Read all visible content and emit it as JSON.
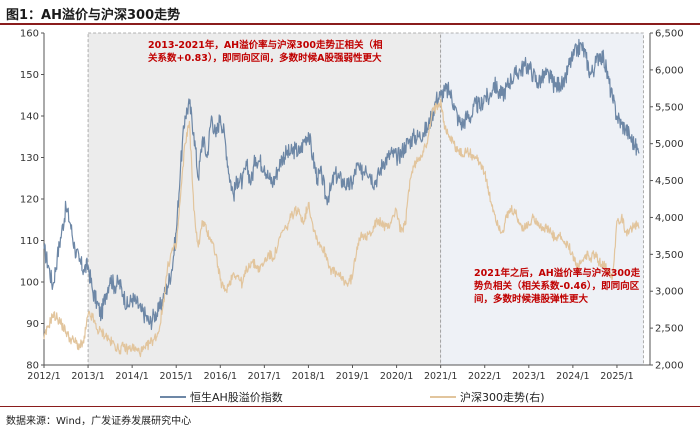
{
  "figure_title": "图1：AH溢价与沪深300走势",
  "source_note": "数据来源：Wind，广发证券发展研究中心",
  "colors": {
    "ah": "#6d87a6",
    "hs300": "#e2c59d",
    "annotation": "#c00000",
    "shade": "#ececec",
    "shade2": "#eef1f6"
  },
  "chart_data": {
    "type": "line",
    "title": "AH溢价与沪深300走势",
    "x_range": [
      2012.0,
      2025.75
    ],
    "x_ticks": [
      "2012/1",
      "2013/1",
      "2014/1",
      "2015/1",
      "2016/1",
      "2017/1",
      "2018/1",
      "2019/1",
      "2020/1",
      "2021/1",
      "2022/1",
      "2023/1",
      "2024/1",
      "2025/1"
    ],
    "y_left": {
      "range": [
        80,
        160
      ],
      "ticks": [
        80,
        90,
        100,
        110,
        120,
        130,
        140,
        150,
        160
      ]
    },
    "y_right": {
      "range": [
        2000,
        6500
      ],
      "ticks": [
        "2,000",
        "2,500",
        "3,000",
        "3,500",
        "4,000",
        "4,500",
        "5,000",
        "5,500",
        "6,000",
        "6,500"
      ]
    },
    "legend": [
      "恒生AH股溢价指数",
      "沪深300走势(右)"
    ],
    "shaded_periods": [
      {
        "start": 2013.0,
        "end": 2021.0,
        "label": "2013-2021年，AH溢价率与沪深300走势正相关（相关系数+0.83），即同向区间，多数时候A股强弱性更大"
      },
      {
        "start": 2021.0,
        "end": 2025.6,
        "label": "2021年之后，AH溢价率与沪深300走势负相关（相关系数-0.46），即同向区间，多数时候港股弹性更大"
      }
    ],
    "series": [
      {
        "name": "恒生AH股溢价指数",
        "axis": "left",
        "x": [
          2012.0,
          2012.1,
          2012.2,
          2012.3,
          2012.4,
          2012.5,
          2012.6,
          2012.7,
          2012.8,
          2012.9,
          2013.0,
          2013.1,
          2013.2,
          2013.3,
          2013.4,
          2013.5,
          2013.6,
          2013.7,
          2013.8,
          2013.9,
          2014.0,
          2014.1,
          2014.2,
          2014.3,
          2014.4,
          2014.5,
          2014.6,
          2014.7,
          2014.8,
          2014.9,
          2015.0,
          2015.1,
          2015.2,
          2015.3,
          2015.4,
          2015.5,
          2015.6,
          2015.7,
          2015.8,
          2015.9,
          2016.0,
          2016.1,
          2016.2,
          2016.3,
          2016.4,
          2016.5,
          2016.6,
          2016.7,
          2016.8,
          2016.9,
          2017.0,
          2017.1,
          2017.2,
          2017.3,
          2017.4,
          2017.5,
          2017.6,
          2017.7,
          2017.8,
          2017.9,
          2018.0,
          2018.1,
          2018.2,
          2018.3,
          2018.4,
          2018.5,
          2018.6,
          2018.7,
          2018.8,
          2018.9,
          2019.0,
          2019.1,
          2019.2,
          2019.3,
          2019.4,
          2019.5,
          2019.6,
          2019.7,
          2019.8,
          2019.9,
          2020.0,
          2020.1,
          2020.2,
          2020.3,
          2020.4,
          2020.5,
          2020.6,
          2020.7,
          2020.8,
          2020.9,
          2021.0,
          2021.1,
          2021.2,
          2021.3,
          2021.4,
          2021.5,
          2021.6,
          2021.7,
          2021.8,
          2021.9,
          2022.0,
          2022.1,
          2022.2,
          2022.3,
          2022.4,
          2022.5,
          2022.6,
          2022.7,
          2022.8,
          2022.9,
          2023.0,
          2023.1,
          2023.2,
          2023.3,
          2023.4,
          2023.5,
          2023.6,
          2023.7,
          2023.8,
          2023.9,
          2024.0,
          2024.1,
          2024.2,
          2024.3,
          2024.4,
          2024.5,
          2024.6,
          2024.7,
          2024.8,
          2024.9,
          2025.0,
          2025.1,
          2025.2,
          2025.3,
          2025.4,
          2025.5
        ],
        "values": [
          108,
          104,
          99,
          106,
          112,
          118,
          114,
          108,
          105,
          103,
          104,
          98,
          95,
          92,
          97,
          101,
          99,
          100,
          97,
          94,
          96,
          95,
          93,
          92,
          90,
          92,
          93,
          96,
          99,
          103,
          112,
          128,
          140,
          143,
          136,
          125,
          135,
          130,
          140,
          135,
          140,
          135,
          126,
          121,
          125,
          124,
          128,
          124,
          130,
          129,
          128,
          125,
          124,
          127,
          130,
          131,
          131,
          132,
          131,
          134,
          136,
          130,
          125,
          126,
          120,
          122,
          126,
          125,
          124,
          123,
          124,
          128,
          126,
          128,
          126,
          124,
          126,
          129,
          130,
          131,
          130,
          131,
          133,
          134,
          135,
          135,
          136,
          137,
          140,
          144,
          145,
          146,
          146,
          143,
          139,
          138,
          140,
          140,
          143,
          142,
          145,
          144,
          148,
          146,
          145,
          147,
          149,
          150,
          151,
          152,
          152,
          150,
          148,
          149,
          150,
          149,
          147,
          148,
          147,
          152,
          154,
          156,
          157,
          154,
          150,
          152,
          155,
          154,
          149,
          144,
          140,
          138,
          137,
          135,
          133,
          131
        ]
      },
      {
        "name": "沪深300走势(右)",
        "axis": "right",
        "x": [
          2012.0,
          2012.1,
          2012.2,
          2012.3,
          2012.4,
          2012.5,
          2012.6,
          2012.7,
          2012.8,
          2012.9,
          2013.0,
          2013.1,
          2013.2,
          2013.3,
          2013.4,
          2013.5,
          2013.6,
          2013.7,
          2013.8,
          2013.9,
          2014.0,
          2014.1,
          2014.2,
          2014.3,
          2014.4,
          2014.5,
          2014.6,
          2014.7,
          2014.8,
          2014.9,
          2015.0,
          2015.1,
          2015.2,
          2015.3,
          2015.4,
          2015.5,
          2015.6,
          2015.7,
          2015.8,
          2015.9,
          2016.0,
          2016.1,
          2016.2,
          2016.3,
          2016.4,
          2016.5,
          2016.6,
          2016.7,
          2016.8,
          2016.9,
          2017.0,
          2017.1,
          2017.2,
          2017.3,
          2017.4,
          2017.5,
          2017.6,
          2017.7,
          2017.8,
          2017.9,
          2018.0,
          2018.1,
          2018.2,
          2018.3,
          2018.4,
          2018.5,
          2018.6,
          2018.7,
          2018.8,
          2018.9,
          2019.0,
          2019.1,
          2019.2,
          2019.3,
          2019.4,
          2019.5,
          2019.6,
          2019.7,
          2019.8,
          2019.9,
          2020.0,
          2020.1,
          2020.2,
          2020.3,
          2020.4,
          2020.5,
          2020.6,
          2020.7,
          2020.8,
          2020.9,
          2021.0,
          2021.1,
          2021.2,
          2021.3,
          2021.4,
          2021.5,
          2021.6,
          2021.7,
          2021.8,
          2021.9,
          2022.0,
          2022.1,
          2022.2,
          2022.3,
          2022.4,
          2022.5,
          2022.6,
          2022.7,
          2022.8,
          2022.9,
          2023.0,
          2023.1,
          2023.2,
          2023.3,
          2023.4,
          2023.5,
          2023.6,
          2023.7,
          2023.8,
          2023.9,
          2024.0,
          2024.1,
          2024.2,
          2024.3,
          2024.4,
          2024.5,
          2024.6,
          2024.7,
          2024.8,
          2024.9,
          2025.0,
          2025.1,
          2025.2,
          2025.3,
          2025.4,
          2025.5
        ],
        "values": [
          2350,
          2530,
          2680,
          2640,
          2550,
          2450,
          2350,
          2320,
          2250,
          2300,
          2680,
          2650,
          2480,
          2450,
          2400,
          2320,
          2280,
          2200,
          2250,
          2210,
          2240,
          2200,
          2180,
          2220,
          2300,
          2350,
          2450,
          2800,
          3300,
          3550,
          3600,
          4300,
          5000,
          5300,
          4100,
          3600,
          3950,
          3800,
          3700,
          3500,
          3150,
          3000,
          3100,
          3250,
          3200,
          3100,
          3300,
          3400,
          3350,
          3300,
          3400,
          3500,
          3450,
          3600,
          3800,
          3850,
          4000,
          4100,
          4050,
          3950,
          4200,
          3900,
          3700,
          3600,
          3500,
          3300,
          3250,
          3200,
          3150,
          3100,
          3200,
          3600,
          3800,
          3700,
          3800,
          3900,
          3950,
          3900,
          3850,
          4000,
          4100,
          3800,
          3900,
          4500,
          4700,
          4800,
          4900,
          5000,
          5400,
          5500,
          5600,
          5200,
          5100,
          5000,
          4900,
          4850,
          4900,
          4850,
          4800,
          4750,
          4600,
          4300,
          4100,
          3900,
          3800,
          4000,
          4100,
          4050,
          3900,
          3850,
          3900,
          4000,
          3950,
          3850,
          3850,
          3800,
          3700,
          3750,
          3650,
          3600,
          3500,
          3300,
          3400,
          3500,
          3450,
          3500,
          3400,
          3350,
          3300,
          3200,
          3950,
          4000,
          3800,
          3850,
          3900,
          3850
        ]
      }
    ]
  }
}
